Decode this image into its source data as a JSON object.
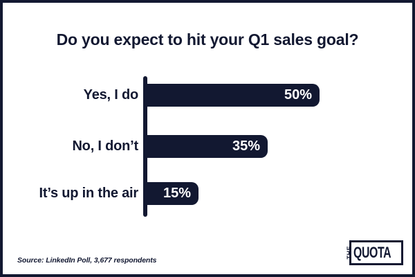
{
  "title": "Do you expect to hit your Q1 sales goal?",
  "chart_data": {
    "type": "bar",
    "orientation": "horizontal",
    "title": "Do you expect to hit your Q1 sales goal?",
    "categories": [
      "Yes, I do",
      "No, I don’t",
      "It’s up in the air"
    ],
    "values": [
      50,
      35,
      15
    ],
    "value_labels": [
      "50%",
      "35%",
      "15%"
    ],
    "unit": "%",
    "xlim": [
      0,
      60
    ],
    "grid": false,
    "legend": "none",
    "bar_color": "#121831",
    "value_label_color": "#FFFFFF"
  },
  "footer": {
    "source": "Source: LinkedIn Poll, 3,677 respondents",
    "logo": {
      "the": "THE",
      "quota": "QUOTA"
    }
  },
  "colors": {
    "navy": "#121831",
    "background": "#FFFFFF"
  }
}
